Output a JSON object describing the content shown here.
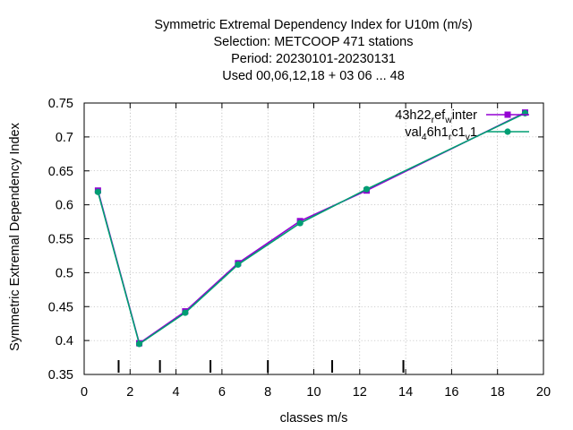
{
  "chart_data": {
    "type": "line",
    "title_lines": [
      "Symmetric Extremal Dependency Index  for U10m (m/s)",
      "Selection: METCOOP    471 stations",
      "Period: 20230101-20230131",
      "Used  00,06,12,18  + 03 06 ... 48"
    ],
    "xlabel": "classes m/s",
    "ylabel": "Symmetric Extremal Dependency Index",
    "xlim": [
      0,
      20
    ],
    "ylim": [
      0.35,
      0.75
    ],
    "x_ticks": [
      "0",
      "2",
      "4",
      "6",
      "8",
      "10",
      "12",
      "14",
      "16",
      "18",
      "20"
    ],
    "y_ticks": [
      "0.35",
      "0.4",
      "0.45",
      "0.5",
      "0.55",
      "0.6",
      "0.65",
      "0.7",
      "0.75"
    ],
    "class_marks": [
      1.5,
      3.3,
      5.5,
      8.0,
      10.8,
      13.9
    ],
    "legend_position": "top-right",
    "series": [
      {
        "legend": [
          {
            "text": "43h22",
            "sub": false
          },
          {
            "text": "r",
            "sub": true
          },
          {
            "text": "ef",
            "sub": false
          },
          {
            "text": "w",
            "sub": true
          },
          {
            "text": "inter",
            "sub": false
          }
        ],
        "color": "#9400d3",
        "marker": "square",
        "x": [
          0.6,
          2.4,
          4.4,
          6.7,
          9.4,
          12.3,
          19.2
        ],
        "y": [
          0.621,
          0.396,
          0.443,
          0.514,
          0.576,
          0.621,
          0.736
        ]
      },
      {
        "legend": [
          {
            "text": "val",
            "sub": false
          },
          {
            "text": "4",
            "sub": true
          },
          {
            "text": "6h1",
            "sub": false
          },
          {
            "text": "r",
            "sub": true
          },
          {
            "text": "c1",
            "sub": false
          },
          {
            "text": "v",
            "sub": true
          },
          {
            "text": "1",
            "sub": false
          }
        ],
        "color": "#009e73",
        "marker": "circle",
        "x": [
          0.6,
          2.4,
          4.4,
          6.7,
          9.4,
          12.3,
          19.2
        ],
        "y": [
          0.619,
          0.395,
          0.441,
          0.512,
          0.573,
          0.623,
          0.735
        ]
      }
    ]
  }
}
